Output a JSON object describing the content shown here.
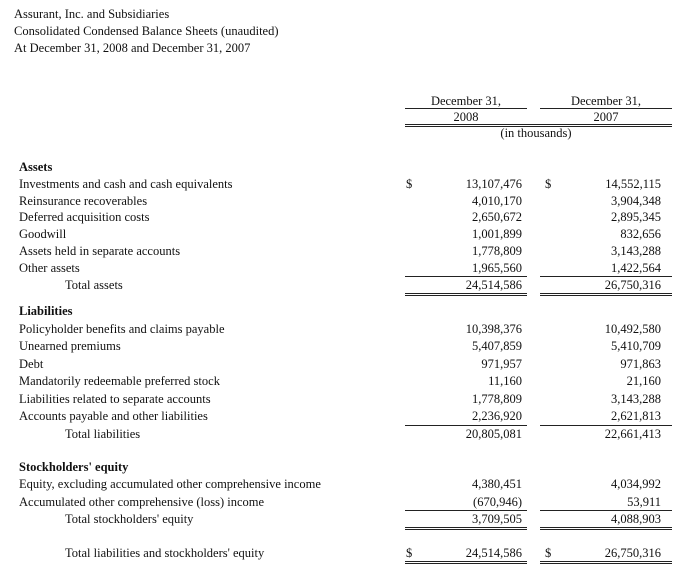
{
  "header": {
    "lines": [
      "Assurant, Inc. and Subsidiaries",
      "Consolidated Condensed Balance Sheets (unaudited)",
      "At December 31, 2008 and December 31, 2007"
    ]
  },
  "columns": [
    {
      "date": "December 31,",
      "year": "2008"
    },
    {
      "date": "December 31,",
      "year": "2007"
    }
  ],
  "unit": "(in thousands)",
  "sections": [
    {
      "title": "Assets",
      "rows": [
        {
          "label": "Investments and cash and cash equivalents",
          "currency": [
            "$",
            "$"
          ],
          "values": [
            "13,107,476",
            "14,552,115"
          ]
        },
        {
          "label": "Reinsurance recoverables",
          "values": [
            "4,010,170",
            "3,904,348"
          ]
        },
        {
          "label": "Deferred acquisition costs",
          "values": [
            "2,650,672",
            "2,895,345"
          ]
        },
        {
          "label": "Goodwill",
          "values": [
            "1,001,899",
            "832,656"
          ]
        },
        {
          "label": "Assets held in separate accounts",
          "values": [
            "1,778,809",
            "3,143,288"
          ]
        },
        {
          "label": "Other assets",
          "values": [
            "1,965,560",
            "1,422,564"
          ]
        }
      ],
      "total": {
        "label": "Total assets",
        "values": [
          "24,514,586",
          "26,750,316"
        ]
      }
    },
    {
      "title": "Liabilities",
      "rows": [
        {
          "label": "Policyholder benefits and claims payable",
          "values": [
            "10,398,376",
            "10,492,580"
          ]
        },
        {
          "label": "Unearned premiums",
          "values": [
            "5,407,859",
            "5,410,709"
          ]
        },
        {
          "label": "Debt",
          "values": [
            "971,957",
            "971,863"
          ]
        },
        {
          "label": "Mandatorily redeemable preferred stock",
          "values": [
            "11,160",
            "21,160"
          ]
        },
        {
          "label": "Liabilities related to separate accounts",
          "values": [
            "1,778,809",
            "3,143,288"
          ]
        },
        {
          "label": "Accounts payable and other liabilities",
          "values": [
            "2,236,920",
            "2,621,813"
          ]
        }
      ],
      "total": {
        "label": "Total liabilities",
        "values": [
          "20,805,081",
          "22,661,413"
        ]
      }
    },
    {
      "title": "Stockholders' equity",
      "rows": [
        {
          "label": "Equity, excluding accumulated other comprehensive income",
          "values": [
            "4,380,451",
            "4,034,992"
          ]
        },
        {
          "label": "Accumulated other comprehensive (loss) income",
          "values": [
            "(670,946)",
            "53,911"
          ]
        }
      ],
      "total": {
        "label": "Total stockholders' equity",
        "values": [
          "3,709,505",
          "4,088,903"
        ]
      }
    }
  ],
  "grand_total": {
    "label": "Total liabilities and stockholders' equity",
    "currency": [
      "$",
      "$"
    ],
    "values": [
      "24,514,586",
      "26,750,316"
    ]
  }
}
